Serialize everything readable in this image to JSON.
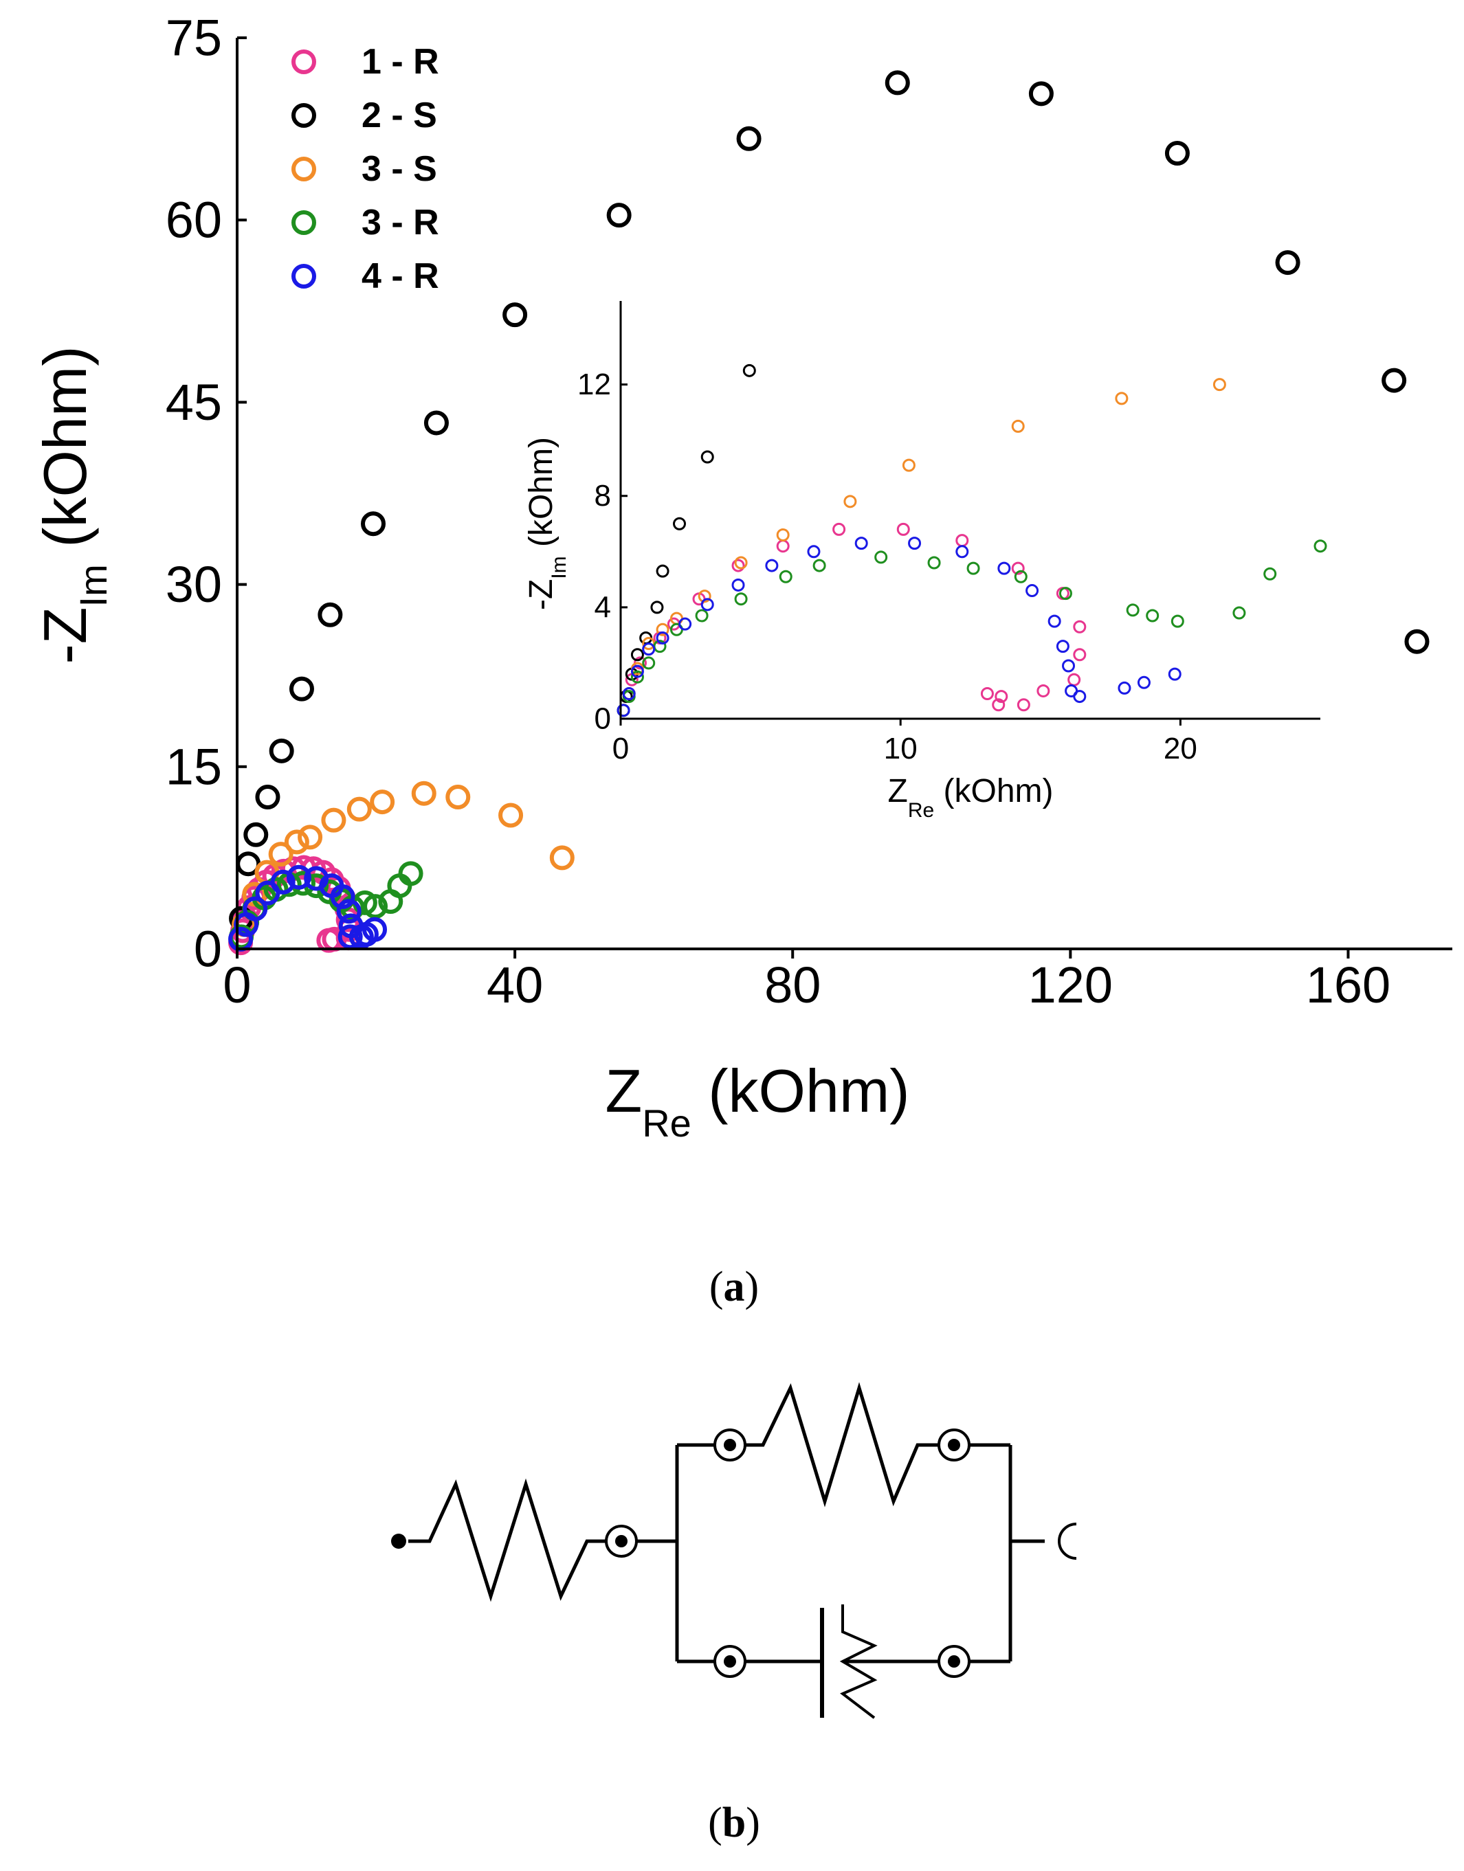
{
  "chart_data": [
    {
      "id": "main",
      "type": "scatter",
      "xlabel_main": "Z",
      "xlabel_sub": "Re",
      "xlabel_unit": " (kOhm)",
      "ylabel_main": "-Z",
      "ylabel_sub": "Im",
      "ylabel_unit": " (kOhm)",
      "xlim": [
        0,
        175
      ],
      "ylim": [
        0,
        75
      ],
      "xticks": [
        0,
        40,
        80,
        120,
        160
      ],
      "yticks": [
        0,
        15,
        30,
        45,
        60,
        75
      ],
      "legend_position": "top-left",
      "series": [
        {
          "name": "1 - R",
          "color": "#e8368f",
          "points": [
            [
              0.5,
              0.5
            ],
            [
              0.8,
              1.5
            ],
            [
              1.2,
              2.5
            ],
            [
              1.7,
              3.4
            ],
            [
              2.4,
              4.2
            ],
            [
              3.2,
              4.9
            ],
            [
              4.2,
              5.5
            ],
            [
              5.4,
              6.0
            ],
            [
              6.7,
              6.4
            ],
            [
              8.1,
              6.6
            ],
            [
              9.6,
              6.7
            ],
            [
              11.0,
              6.6
            ],
            [
              12.4,
              6.3
            ],
            [
              13.6,
              5.7
            ],
            [
              14.6,
              5.0
            ],
            [
              15.3,
              4.2
            ],
            [
              15.8,
              3.3
            ],
            [
              16.0,
              2.4
            ],
            [
              16.2,
              1.6
            ],
            [
              16.0,
              0.9
            ],
            [
              14.0,
              0.8
            ],
            [
              13.2,
              0.7
            ]
          ]
        },
        {
          "name": "2 - S",
          "color": "#000000",
          "points": [
            [
              0.6,
              2.5
            ],
            [
              1.6,
              7.0
            ],
            [
              2.7,
              9.4
            ],
            [
              4.4,
              12.5
            ],
            [
              6.4,
              16.3
            ],
            [
              9.3,
              21.4
            ],
            [
              13.4,
              27.5
            ],
            [
              19.6,
              35.0
            ],
            [
              28.7,
              43.3
            ],
            [
              40.0,
              52.2
            ],
            [
              55.0,
              60.4
            ],
            [
              73.7,
              66.7
            ],
            [
              95.1,
              71.3
            ],
            [
              115.8,
              70.4
            ],
            [
              135.4,
              65.5
            ],
            [
              151.3,
              56.5
            ],
            [
              166.6,
              46.8
            ],
            [
              169.9,
              25.3
            ]
          ]
        },
        {
          "name": "3 - S",
          "color": "#f28c28",
          "points": [
            [
              1.0,
              2.0
            ],
            [
              2.5,
              4.5
            ],
            [
              4.3,
              6.3
            ],
            [
              6.3,
              7.8
            ],
            [
              8.6,
              8.8
            ],
            [
              10.5,
              9.2
            ],
            [
              13.9,
              10.6
            ],
            [
              17.6,
              11.5
            ],
            [
              20.9,
              12.1
            ],
            [
              26.9,
              12.8
            ],
            [
              31.8,
              12.5
            ],
            [
              39.4,
              11.0
            ],
            [
              46.8,
              7.5
            ]
          ]
        },
        {
          "name": "3 - R",
          "color": "#1f8f1f",
          "points": [
            [
              0.6,
              1.0
            ],
            [
              1.4,
              2.2
            ],
            [
              2.5,
              3.3
            ],
            [
              3.9,
              4.2
            ],
            [
              5.6,
              4.9
            ],
            [
              7.5,
              5.3
            ],
            [
              9.5,
              5.4
            ],
            [
              11.4,
              5.2
            ],
            [
              13.3,
              4.7
            ],
            [
              15.0,
              4.0
            ],
            [
              16.6,
              3.4
            ],
            [
              18.4,
              3.8
            ],
            [
              19.9,
              3.5
            ],
            [
              22.1,
              3.9
            ],
            [
              23.4,
              5.2
            ],
            [
              25.0,
              6.2
            ]
          ]
        },
        {
          "name": "4 - R",
          "color": "#1a1ae6",
          "points": [
            [
              0.5,
              0.8
            ],
            [
              1.3,
              2.0
            ],
            [
              2.6,
              3.3
            ],
            [
              4.4,
              4.6
            ],
            [
              6.6,
              5.5
            ],
            [
              8.9,
              5.9
            ],
            [
              11.4,
              5.8
            ],
            [
              13.6,
              5.2
            ],
            [
              15.2,
              4.3
            ],
            [
              16.1,
              3.1
            ],
            [
              16.4,
              1.9
            ],
            [
              16.3,
              1.0
            ],
            [
              17.9,
              1.0
            ],
            [
              18.6,
              1.2
            ],
            [
              19.8,
              1.6
            ]
          ]
        }
      ]
    },
    {
      "id": "inset",
      "type": "scatter",
      "xlabel_main": "Z",
      "xlabel_sub": "Re",
      "xlabel_unit": " (kOhm)",
      "ylabel_main": "-Z",
      "ylabel_sub": "Im",
      "ylabel_unit": " (kOhm)",
      "xlim": [
        0,
        25
      ],
      "ylim": [
        0,
        15
      ],
      "xticks": [
        0,
        10,
        20
      ],
      "yticks": [
        0,
        4,
        8,
        12
      ],
      "series": [
        {
          "name": "1 - R",
          "color": "#e8368f",
          "points": [
            [
              0.1,
              0.3
            ],
            [
              0.2,
              0.8
            ],
            [
              0.4,
              1.4
            ],
            [
              0.7,
              2.0
            ],
            [
              1.0,
              2.5
            ],
            [
              1.4,
              2.9
            ],
            [
              1.9,
              3.4
            ],
            [
              2.8,
              4.3
            ],
            [
              4.2,
              5.5
            ],
            [
              5.8,
              6.2
            ],
            [
              7.8,
              6.8
            ],
            [
              10.1,
              6.8
            ],
            [
              12.2,
              6.4
            ],
            [
              14.2,
              5.4
            ],
            [
              15.8,
              4.5
            ],
            [
              16.4,
              3.3
            ],
            [
              16.4,
              2.3
            ],
            [
              16.2,
              1.4
            ],
            [
              15.1,
              1.0
            ],
            [
              13.6,
              0.8
            ],
            [
              13.1,
              0.9
            ],
            [
              14.4,
              0.5
            ],
            [
              13.5,
              0.5
            ]
          ]
        },
        {
          "name": "2 - S",
          "color": "#000000",
          "points": [
            [
              0.1,
              0.3
            ],
            [
              0.2,
              0.8
            ],
            [
              0.4,
              1.6
            ],
            [
              0.6,
              2.3
            ],
            [
              0.9,
              2.9
            ],
            [
              1.3,
              4.0
            ],
            [
              1.5,
              5.3
            ],
            [
              2.1,
              7.0
            ],
            [
              3.1,
              9.4
            ],
            [
              4.6,
              12.5
            ]
          ]
        },
        {
          "name": "3 - S",
          "color": "#f28c28",
          "points": [
            [
              0.3,
              0.9
            ],
            [
              0.6,
              1.8
            ],
            [
              1.0,
              2.7
            ],
            [
              1.5,
              3.2
            ],
            [
              2.0,
              3.6
            ],
            [
              3.0,
              4.4
            ],
            [
              4.3,
              5.6
            ],
            [
              5.8,
              6.6
            ],
            [
              8.2,
              7.8
            ],
            [
              10.3,
              9.1
            ],
            [
              14.2,
              10.5
            ],
            [
              17.9,
              11.5
            ],
            [
              21.4,
              12.0
            ]
          ]
        },
        {
          "name": "3 - R",
          "color": "#1f8f1f",
          "points": [
            [
              0.1,
              0.3
            ],
            [
              0.3,
              0.8
            ],
            [
              0.6,
              1.5
            ],
            [
              1.0,
              2.0
            ],
            [
              1.4,
              2.6
            ],
            [
              2.0,
              3.2
            ],
            [
              2.9,
              3.7
            ],
            [
              4.3,
              4.3
            ],
            [
              5.9,
              5.1
            ],
            [
              7.1,
              5.5
            ],
            [
              9.3,
              5.8
            ],
            [
              11.2,
              5.6
            ],
            [
              12.6,
              5.4
            ],
            [
              14.3,
              5.1
            ],
            [
              15.9,
              4.5
            ],
            [
              18.3,
              3.9
            ],
            [
              19.0,
              3.7
            ],
            [
              19.9,
              3.5
            ],
            [
              22.1,
              3.8
            ],
            [
              23.2,
              5.2
            ],
            [
              25.0,
              6.2
            ]
          ]
        },
        {
          "name": "4 - R",
          "color": "#1a1ae6",
          "points": [
            [
              0.1,
              0.3
            ],
            [
              0.3,
              0.9
            ],
            [
              0.6,
              1.7
            ],
            [
              1.0,
              2.5
            ],
            [
              1.5,
              2.9
            ],
            [
              2.3,
              3.4
            ],
            [
              3.1,
              4.1
            ],
            [
              4.2,
              4.8
            ],
            [
              5.4,
              5.5
            ],
            [
              6.9,
              6.0
            ],
            [
              8.6,
              6.3
            ],
            [
              10.5,
              6.3
            ],
            [
              12.2,
              6.0
            ],
            [
              13.7,
              5.4
            ],
            [
              14.7,
              4.6
            ],
            [
              15.5,
              3.5
            ],
            [
              15.8,
              2.6
            ],
            [
              16.0,
              1.9
            ],
            [
              16.1,
              1.0
            ],
            [
              16.4,
              0.8
            ],
            [
              18.0,
              1.1
            ],
            [
              18.7,
              1.3
            ],
            [
              19.8,
              1.6
            ]
          ]
        }
      ]
    }
  ],
  "panels": {
    "a_label_open": "(",
    "a_label_letter": "a",
    "a_label_close": ")",
    "b_label_open": "(",
    "b_label_letter": "b",
    "b_label_close": ")"
  },
  "circuit": {
    "components": [
      "resistor",
      "parallel-resistor",
      "constant-phase-element"
    ]
  }
}
